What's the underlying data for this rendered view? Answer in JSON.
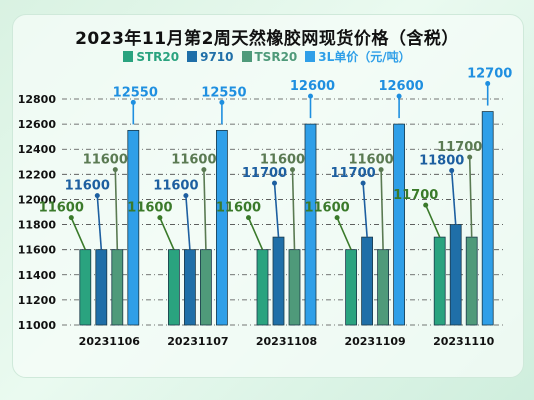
{
  "chart_data": {
    "type": "bar",
    "title": "2023年11月第2周天然橡胶网现货价格（含税）",
    "categories": [
      "20231106",
      "20231107",
      "20231108",
      "20231109",
      "20231110"
    ],
    "series": [
      {
        "name": "STR20",
        "values": [
          11600,
          11600,
          11600,
          11600,
          11700
        ]
      },
      {
        "name": "9710",
        "values": [
          11600,
          11600,
          11700,
          11700,
          11800
        ]
      },
      {
        "name": "TSR20",
        "values": [
          11600,
          11600,
          11600,
          11600,
          11700
        ]
      },
      {
        "name": "3L单价（元/吨）",
        "values": [
          12550,
          12550,
          12600,
          12600,
          12700
        ]
      }
    ],
    "ylim": [
      11000,
      12800
    ],
    "yticks": [
      11000,
      11200,
      11400,
      11600,
      11800,
      12000,
      12200,
      12400,
      12600,
      12800
    ],
    "grid": true,
    "legend": "top",
    "colors": {
      "STR20": "#2aa37f",
      "9710": "#1f6fa8",
      "TSR20": "#4f9a7a",
      "3L": "#2f9fe8",
      "label_str20": "#3a7a2a",
      "label_9710": "#1d5fa0",
      "label_tsr20": "#5a7a52",
      "label_3l": "#1f8fe0"
    }
  }
}
